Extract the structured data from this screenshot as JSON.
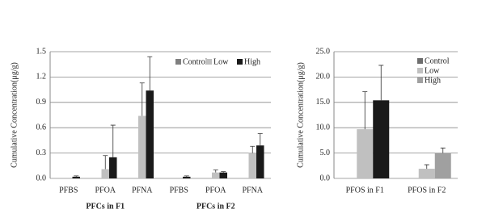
{
  "chart_data": [
    {
      "type": "bar",
      "y_label": "Cumulative Concentration(μg/g)",
      "categories": [
        "PFBS",
        "PFOA",
        "PFNA",
        "PFBS",
        "PFOA",
        "PFNA"
      ],
      "groups": [
        "PFCs in F1",
        "PFCs in F2"
      ],
      "series": [
        {
          "name": "Control",
          "color": "#7f7f7f",
          "values": [
            0,
            0,
            0,
            0,
            0,
            0
          ],
          "errors": [
            null,
            null,
            null,
            null,
            null,
            null
          ]
        },
        {
          "name": "Low",
          "color": "#c0c0c0",
          "values": [
            0,
            0.11,
            0.74,
            0,
            0.07,
            0.3
          ],
          "errors": [
            null,
            0.16,
            0.39,
            null,
            0.03,
            0.08
          ]
        },
        {
          "name": "High",
          "color": "#1a1a1a",
          "values": [
            0.02,
            0.25,
            1.04,
            0.02,
            0.07,
            0.39
          ],
          "errors": [
            0.01,
            0.38,
            0.4,
            0.01,
            0.01,
            0.14
          ]
        }
      ],
      "ylim": [
        0,
        1.5
      ],
      "yticks": [
        {
          "value": 0,
          "label": "0.0"
        },
        0.3,
        0.6,
        0.9,
        1.2,
        1.5
      ],
      "grid": true,
      "legend": "top-right-row"
    },
    {
      "type": "bar",
      "y_label": "Cumulative Concentration(μg/g)",
      "categories": [
        "PFOS in F1",
        "PFOS in F2"
      ],
      "series": [
        {
          "name": "Control",
          "color": "#6e6e6e",
          "values": [
            0,
            0
          ],
          "errors": [
            null,
            null
          ]
        },
        {
          "name": "Low",
          "color": "#c0c0c0",
          "values": [
            9.7,
            1.9
          ],
          "errors": [
            7.4,
            0.8
          ]
        },
        {
          "name": "High",
          "color": "#a0a0a0",
          "colors": [
            "#1a1a1a",
            "#a0a0a0"
          ],
          "values": [
            15.4,
            5.0
          ],
          "errors": [
            6.9,
            1.0
          ]
        }
      ],
      "ylim": [
        0,
        25
      ],
      "yticks": [
        {
          "value": 0,
          "label": "0.0"
        },
        {
          "value": 5,
          "label": "5.0"
        },
        {
          "value": 10,
          "label": "10.0"
        },
        {
          "value": 15,
          "label": "15.0"
        },
        {
          "value": 20,
          "label": "20.0"
        },
        {
          "value": 25,
          "label": "25.0"
        }
      ],
      "grid": true,
      "legend": "top-right-column"
    }
  ]
}
